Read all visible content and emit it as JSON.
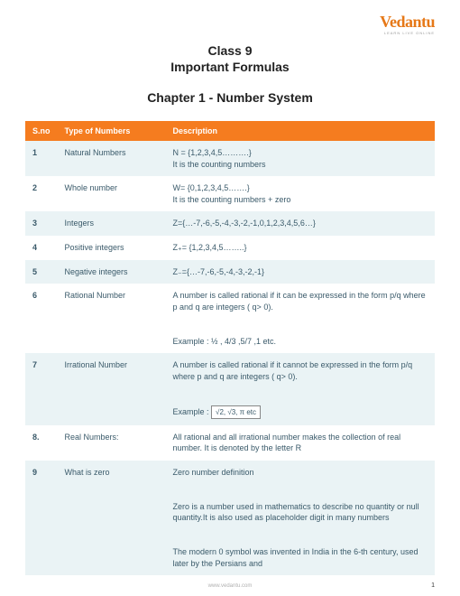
{
  "brand": {
    "name": "Vedantu",
    "tagline": "LEARN LIVE ONLINE"
  },
  "heading": {
    "classLine": "Class 9",
    "formulasLine": "Important Formulas",
    "chapterLine": "Chapter 1 - Number System"
  },
  "table": {
    "header": {
      "sno": "S.no",
      "type": "Type of Numbers",
      "desc": "Description"
    },
    "rows": [
      {
        "sno": "1",
        "type": "Natural Numbers",
        "desc": "N = {1,2,3,4,5……….}\nIt is the counting numbers"
      },
      {
        "sno": "2",
        "type": "Whole number",
        "desc": "W= {0,1,2,3,4,5…….}\nIt is the counting numbers + zero"
      },
      {
        "sno": "3",
        "type": "Integers",
        "desc": "Z={…-7,-6,-5,-4,-3,-2,-1,0,1,2,3,4,5,6…}"
      },
      {
        "sno": "4",
        "type": "Positive integers",
        "desc": "Z₊= {1,2,3,4,5……..}"
      },
      {
        "sno": "5",
        "type": "Negative integers",
        "desc": "Z₋={…-7,-6,-5,-4,-3,-2,-1}"
      },
      {
        "sno": "6",
        "type": "Rational Number",
        "desc": "A number is called rational if it can be expressed in the form p/q where p and q are integers ( q> 0).\n\nExample :  ½ , 4/3 ,5/7 ,1 etc."
      },
      {
        "sno": "7",
        "type": "Irrational Number",
        "desc": "A number is called rational if it cannot be expressed in the form p/q where p and q are integers ( q> 0).\n\nExample :",
        "mathExample": "√2, √3, π etc"
      },
      {
        "sno": "8.",
        "type": "Real Numbers:",
        "desc": "All rational and all irrational number makes the collection of  real number. It is denoted by the letter R"
      },
      {
        "sno": "9",
        "type": "What is zero",
        "desc": "Zero number definition\n\nZero is a number used in mathematics to describe no quantity or null quantity.It is also used as placeholder digit in many numbers\n\nThe modern 0 symbol was invented in India in the 6-th century, used later by the Persians and"
      }
    ]
  },
  "footer": {
    "site": "www.vedantu.com",
    "pageNum": "1"
  },
  "colors": {
    "headerBg": "#f57c1f",
    "oddRow": "#eaf3f5",
    "evenRow": "#ffffff",
    "textBody": "#3a5a6a",
    "brand": "#e67817"
  }
}
